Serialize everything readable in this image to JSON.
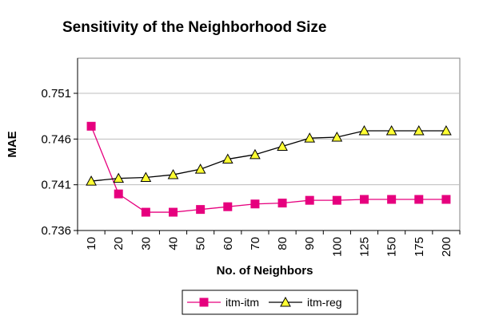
{
  "chart_data": {
    "type": "line",
    "title": "Sensitivity of the Neighborhood Size",
    "xlabel": "No. of Neighbors",
    "ylabel": "MAE",
    "categories": [
      "10",
      "20",
      "30",
      "40",
      "50",
      "60",
      "70",
      "80",
      "90",
      "100",
      "125",
      "150",
      "175",
      "200"
    ],
    "ylim": [
      0.736,
      0.751
    ],
    "yticks": [
      "0.736",
      "0.741",
      "0.746",
      "0.751"
    ],
    "grid": "horizontal",
    "legend_position": "bottom",
    "series": [
      {
        "name": "itm-itm",
        "marker": "square",
        "color": "#e6007e",
        "values": [
          0.7474,
          0.74,
          0.738,
          0.738,
          0.7383,
          0.7386,
          0.7389,
          0.739,
          0.7393,
          0.7393,
          0.7394,
          0.7394,
          0.7394,
          0.7394
        ]
      },
      {
        "name": "itm-reg",
        "marker": "triangle",
        "color": "#000000",
        "fill": "#ffff33",
        "values": [
          0.7414,
          0.7417,
          0.7418,
          0.7421,
          0.7427,
          0.7438,
          0.7443,
          0.7452,
          0.7461,
          0.7462,
          0.7469,
          0.7469,
          0.7469,
          0.7469
        ]
      }
    ]
  }
}
